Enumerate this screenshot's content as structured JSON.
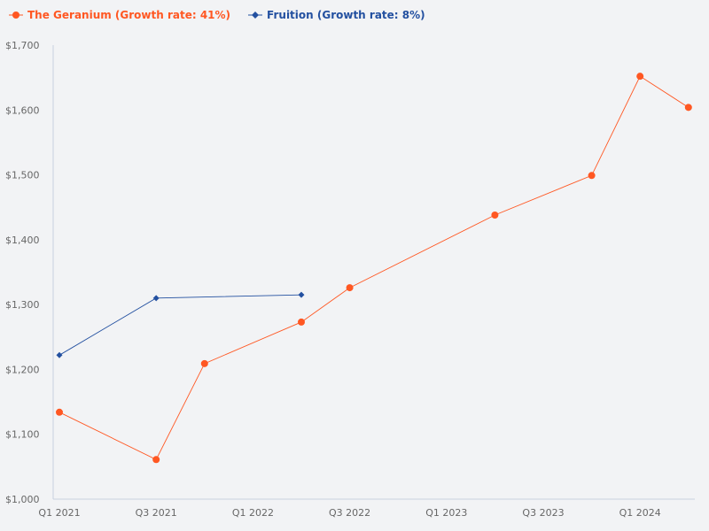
{
  "chart_data": {
    "type": "line",
    "categories": [
      "Q1 2021",
      "Q2 2021",
      "Q3 2021",
      "Q4 2021",
      "Q1 2022",
      "Q2 2022",
      "Q3 2022",
      "Q4 2022",
      "Q1 2023",
      "Q2 2023",
      "Q3 2023",
      "Q4 2023",
      "Q1 2024",
      "Q2 2024"
    ],
    "x_tick_labels": [
      "Q1 2021",
      "Q3 2021",
      "Q1 2022",
      "Q3 2022",
      "Q1 2023",
      "Q3 2023",
      "Q1 2024"
    ],
    "y_tick_labels": [
      "$1,000",
      "$1,100",
      "$1,200",
      "$1,300",
      "$1,400",
      "$1,500",
      "$1,600",
      "$1,700"
    ],
    "ylim": [
      1000,
      1700
    ],
    "grid": false,
    "legend_position": "top-left",
    "series": [
      {
        "name": "The Geranium (Growth rate: 41%)",
        "color": "#ff5722",
        "marker": "circle",
        "points": [
          [
            "Q1 2021",
            1134
          ],
          [
            "Q3 2021",
            1061
          ],
          [
            "Q4 2021",
            1209
          ],
          [
            "Q2 2022",
            1273
          ],
          [
            "Q3 2022",
            1326
          ],
          [
            "Q2 2023",
            1438
          ],
          [
            "Q4 2023",
            1499
          ],
          [
            "Q1 2024",
            1652
          ],
          [
            "Q2 2024",
            1604
          ]
        ]
      },
      {
        "name": "Fruition (Growth rate: 8%)",
        "color": "#2350a0",
        "marker": "diamond",
        "points": [
          [
            "Q1 2021",
            1222
          ],
          [
            "Q3 2021",
            1310
          ],
          [
            "Q2 2022",
            1315
          ]
        ]
      }
    ]
  }
}
